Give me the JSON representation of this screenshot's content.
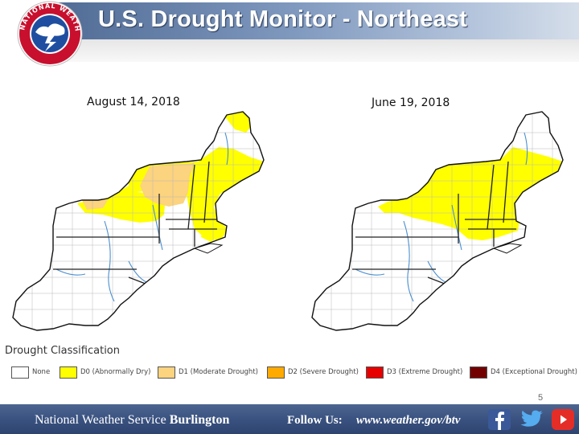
{
  "header": {
    "title": "U.S. Drought Monitor - Northeast",
    "logo_text": "NATIONAL WEATHER SERVICE",
    "logo_icon": "nws-logo-icon"
  },
  "maps": [
    {
      "date": "August 14, 2018"
    },
    {
      "date": "June 19, 2018"
    }
  ],
  "legend": {
    "title": "Drought Classification",
    "items": [
      {
        "label": "None",
        "color": "#ffffff"
      },
      {
        "label": "D0 (Abnormally Dry)",
        "color": "#ffff00"
      },
      {
        "label": "D1 (Moderate Drought)",
        "color": "#fcd37f"
      },
      {
        "label": "D2 (Severe Drought)",
        "color": "#ffaa00"
      },
      {
        "label": "D3 (Extreme Drought)",
        "color": "#e60000"
      },
      {
        "label": "D4 (Exceptional Drought)",
        "color": "#730000"
      }
    ]
  },
  "page_number": "5",
  "footer": {
    "org_prefix": "National Weather Service",
    "org_office": "Burlington",
    "follow_label": "Follow Us:",
    "url": "www.weather.gov/btv",
    "social_icons": [
      "facebook-icon",
      "twitter-icon",
      "youtube-icon"
    ]
  }
}
